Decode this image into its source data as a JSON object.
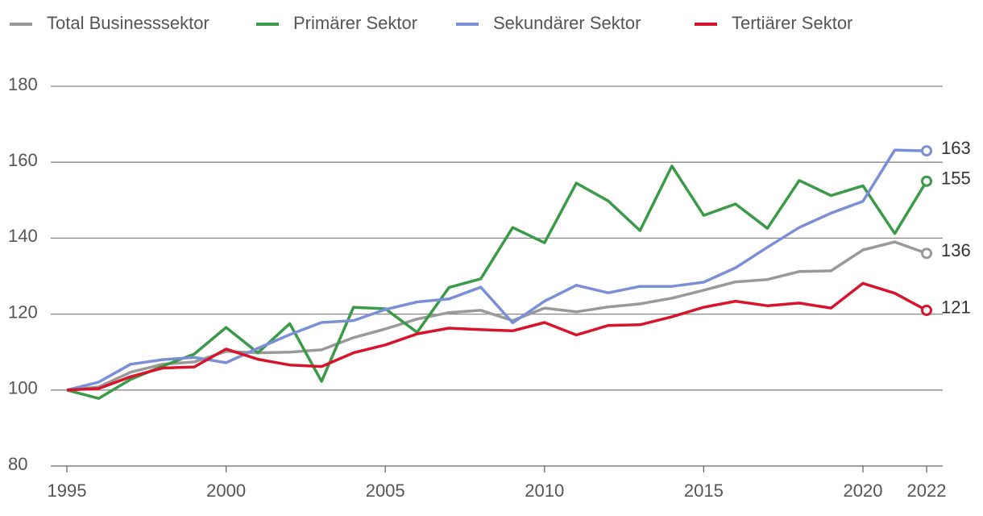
{
  "chart_data": {
    "type": "line",
    "x": [
      1995,
      1996,
      1997,
      1998,
      1999,
      2000,
      2001,
      2002,
      2003,
      2004,
      2005,
      2006,
      2007,
      2008,
      2009,
      2010,
      2011,
      2012,
      2013,
      2014,
      2015,
      2016,
      2017,
      2018,
      2019,
      2020,
      2021,
      2022
    ],
    "series": [
      {
        "name": "Total Businesssektor",
        "color": "#999999",
        "values": [
          100,
          100.8,
          104.7,
          106.8,
          107.4,
          110.2,
          109.8,
          110,
          110.6,
          113.8,
          116.1,
          118.7,
          120.4,
          121,
          118.3,
          121.6,
          120.6,
          121.9,
          122.7,
          124.2,
          126.3,
          128.5,
          129.1,
          131.2,
          131.4,
          136.9,
          139,
          136
        ]
      },
      {
        "name": "Primärer Sektor",
        "color": "#3a9a48",
        "values": [
          100,
          97.8,
          102.8,
          106.3,
          109.5,
          116.5,
          109.8,
          117.5,
          102.3,
          121.8,
          121.4,
          115.2,
          127,
          129.3,
          142.8,
          138.8,
          154.5,
          149.8,
          142,
          159,
          146,
          149,
          142.6,
          155.2,
          151.2,
          153.8,
          141.2,
          155
        ]
      },
      {
        "name": "Sekundärer Sektor",
        "color": "#7b8fd6",
        "values": [
          100,
          102.1,
          106.8,
          108,
          108.6,
          107.2,
          111,
          114.6,
          117.8,
          118.3,
          121.2,
          123.2,
          124,
          127.1,
          117.7,
          123.4,
          127.6,
          125.6,
          127.3,
          127.3,
          128.4,
          132.2,
          137.6,
          142.8,
          146.6,
          149.7,
          163.2,
          163
        ]
      },
      {
        "name": "Tertiärer Sektor",
        "color": "#d7142b",
        "values": [
          100,
          100.4,
          103.5,
          105.8,
          106.1,
          110.8,
          108.1,
          106.6,
          106.2,
          109.8,
          111.9,
          114.8,
          116.3,
          115.9,
          115.6,
          117.8,
          114.5,
          117,
          117.2,
          119.3,
          121.8,
          123.4,
          122.2,
          122.9,
          121.6,
          128.1,
          125.5,
          121
        ]
      }
    ],
    "xlim": [
      1995,
      2022
    ],
    "xticks": [
      1995,
      2000,
      2005,
      2010,
      2015,
      2020,
      2022
    ],
    "ylim": [
      80,
      180
    ],
    "yticks": [
      80,
      100,
      120,
      140,
      160,
      180
    ],
    "grid": true,
    "legend": "top"
  }
}
